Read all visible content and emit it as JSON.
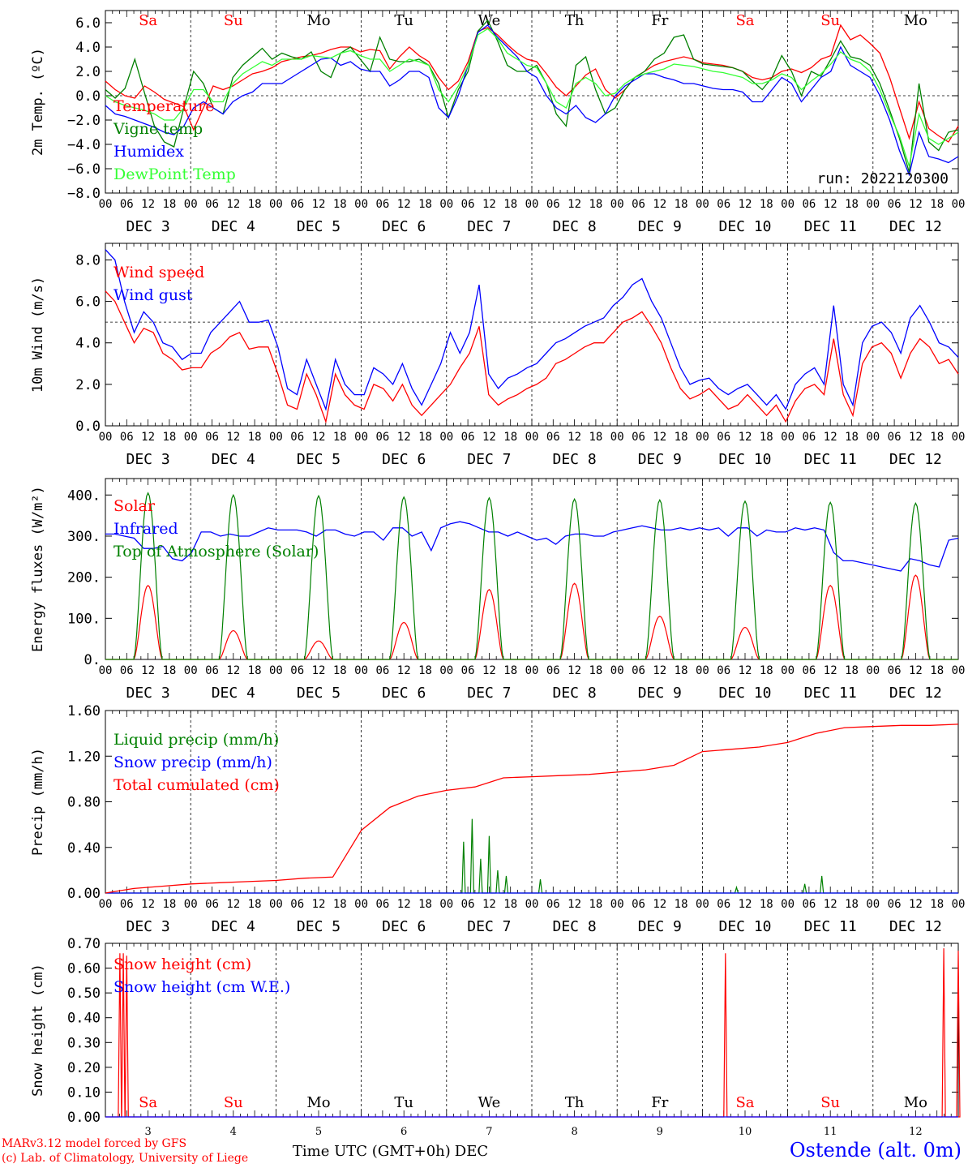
{
  "chart_data": [
    {
      "type": "line",
      "ylabel": "2m Temp. (ºC)",
      "ylim": [
        -8,
        7
      ],
      "yticks": [
        "6.0",
        "4.0",
        "2.0",
        "0.0",
        "−2.0",
        "−4.0",
        "−6.0",
        "−8.0"
      ],
      "yticks_values": [
        6,
        4,
        2,
        0,
        -2,
        -4,
        -6,
        -8
      ],
      "reference_line": 0,
      "annotation": "run: 2022120300",
      "days_weekday": [
        "Sa",
        "Su",
        "Mo",
        "Tu",
        "We",
        "Th",
        "Fr",
        "Sa",
        "Su",
        "Mo"
      ],
      "series": [
        {
          "name": "Temperature",
          "color": "#ff0000",
          "values": [
            1.2,
            0.5,
            0.0,
            -0.2,
            0.8,
            0.3,
            -0.3,
            -0.6,
            -0.9,
            -2.8,
            -1.0,
            0.8,
            0.5,
            0.8,
            1.3,
            1.8,
            2.0,
            2.3,
            2.8,
            3.0,
            3.2,
            3.3,
            3.5,
            3.8,
            4.0,
            4.0,
            3.6,
            3.8,
            3.7,
            2.2,
            3.2,
            4.0,
            3.3,
            2.8,
            1.5,
            0.5,
            1.2,
            2.8,
            5.3,
            5.6,
            5.0,
            4.2,
            3.5,
            3.0,
            2.8,
            1.8,
            0.7,
            0.0,
            0.8,
            1.7,
            2.2,
            0.5,
            -0.2,
            0.5,
            1.5,
            2.0,
            2.5,
            2.8,
            3.0,
            3.2,
            3.0,
            2.7,
            2.6,
            2.5,
            2.3,
            2.0,
            1.5,
            1.3,
            1.5,
            2.0,
            2.2,
            1.9,
            2.3,
            3.0,
            3.3,
            5.8,
            4.6,
            5.0,
            4.3,
            3.5,
            1.5,
            -1.0,
            -3.5,
            -0.5,
            -2.7,
            -3.3,
            -3.8,
            -2.5
          ]
        },
        {
          "name": "Vigne temp",
          "color": "#008000",
          "values": [
            0.5,
            -0.2,
            0.6,
            3.0,
            0.2,
            -2.5,
            -3.8,
            -4.2,
            -1.0,
            2.0,
            1.0,
            -1.0,
            -1.5,
            1.5,
            2.5,
            3.2,
            3.9,
            3.0,
            3.5,
            3.2,
            3.0,
            3.6,
            2.0,
            1.5,
            3.5,
            4.0,
            3.0,
            2.0,
            4.8,
            3.0,
            2.8,
            2.8,
            3.0,
            2.5,
            1.0,
            -1.8,
            0.5,
            2.0,
            5.3,
            6.2,
            4.5,
            2.5,
            2.0,
            2.0,
            2.5,
            1.0,
            -1.5,
            -2.5,
            2.5,
            3.2,
            0.5,
            -1.5,
            -1.0,
            0.5,
            1.5,
            2.0,
            3.0,
            3.5,
            4.8,
            5.0,
            3.0,
            2.6,
            2.5,
            2.4,
            2.3,
            2.0,
            1.2,
            0.5,
            1.5,
            3.3,
            2.0,
            0.0,
            2.0,
            1.6,
            3.0,
            4.5,
            3.2,
            3.0,
            2.5,
            1.0,
            -1.2,
            -3.5,
            -6.3,
            1.0,
            -3.8,
            -4.5,
            -3.0,
            -2.8
          ]
        },
        {
          "name": "Humidex",
          "color": "#0000ff",
          "values": [
            -0.8,
            -1.5,
            -1.7,
            -2.0,
            -2.3,
            -2.6,
            -3.0,
            -3.2,
            -2.5,
            -1.0,
            -0.5,
            -1.0,
            -1.5,
            -0.5,
            0.0,
            0.3,
            1.0,
            1.0,
            1.0,
            1.5,
            2.0,
            2.5,
            3.0,
            3.1,
            2.5,
            2.8,
            2.2,
            2.0,
            2.0,
            0.8,
            1.3,
            2.0,
            2.0,
            1.5,
            -1.0,
            -1.8,
            0.0,
            2.5,
            5.2,
            5.8,
            4.8,
            4.0,
            3.2,
            2.0,
            1.5,
            0.0,
            -1.0,
            -1.5,
            -0.8,
            -1.8,
            -2.2,
            -1.5,
            0.0,
            0.8,
            1.3,
            1.8,
            1.8,
            1.5,
            1.3,
            1.0,
            1.0,
            0.8,
            0.6,
            0.5,
            0.5,
            0.3,
            -0.5,
            -0.5,
            0.5,
            1.5,
            1.0,
            -0.5,
            0.5,
            1.5,
            2.0,
            4.0,
            2.5,
            2.0,
            1.5,
            0.0,
            -2.0,
            -4.5,
            -6.5,
            -3.0,
            -5.0,
            -5.2,
            -5.5,
            -5.0
          ]
        },
        {
          "name": "DewPoint Temp",
          "color": "#33ff33",
          "values": [
            0.0,
            -0.5,
            -0.8,
            -1.0,
            -1.2,
            -1.5,
            -2.0,
            -2.0,
            -1.0,
            0.5,
            0.5,
            -0.5,
            -0.5,
            1.0,
            1.8,
            2.3,
            2.8,
            2.5,
            3.0,
            3.0,
            3.0,
            3.3,
            3.2,
            3.1,
            3.5,
            3.7,
            3.3,
            3.0,
            3.0,
            2.0,
            2.5,
            3.0,
            2.8,
            2.5,
            0.5,
            -0.5,
            0.8,
            2.5,
            5.0,
            5.5,
            4.7,
            3.5,
            3.0,
            2.5,
            2.3,
            1.0,
            -0.5,
            -1.0,
            1.0,
            1.5,
            1.0,
            0.0,
            0.2,
            1.0,
            1.5,
            1.8,
            2.0,
            2.2,
            2.6,
            2.5,
            2.4,
            2.2,
            2.0,
            1.9,
            1.7,
            1.5,
            1.0,
            1.0,
            1.3,
            1.8,
            1.5,
            0.5,
            1.2,
            1.8,
            2.6,
            3.6,
            3.0,
            2.7,
            2.0,
            0.5,
            -1.5,
            -3.3,
            -5.8,
            -1.5,
            -3.5,
            -4.0,
            -3.5,
            -3.0
          ]
        }
      ]
    },
    {
      "type": "line",
      "ylabel": "10m Wind (m/s)",
      "ylim": [
        0,
        8.8
      ],
      "yticks": [
        "8.0",
        "6.0",
        "4.0",
        "2.0",
        "0.0"
      ],
      "yticks_values": [
        8,
        6,
        4,
        2,
        0
      ],
      "reference_line": 5,
      "series": [
        {
          "name": "Wind speed",
          "color": "#ff0000",
          "values": [
            6.5,
            6.0,
            5.0,
            4.0,
            4.7,
            4.5,
            3.5,
            3.2,
            2.7,
            2.8,
            2.8,
            3.5,
            3.8,
            4.3,
            4.5,
            3.7,
            3.8,
            3.8,
            2.5,
            1.0,
            0.8,
            2.5,
            1.5,
            0.2,
            2.5,
            1.5,
            1.0,
            0.8,
            2.0,
            1.8,
            1.2,
            2.0,
            1.0,
            0.5,
            1.0,
            1.5,
            2.0,
            2.8,
            3.5,
            4.8,
            1.5,
            1.0,
            1.3,
            1.5,
            1.8,
            2.0,
            2.3,
            3.0,
            3.2,
            3.5,
            3.8,
            4.0,
            4.0,
            4.5,
            5.0,
            5.2,
            5.5,
            4.8,
            4.0,
            2.8,
            1.8,
            1.3,
            1.5,
            1.8,
            1.3,
            0.8,
            1.0,
            1.5,
            1.0,
            0.5,
            1.0,
            0.2,
            1.2,
            1.8,
            2.0,
            1.5,
            4.2,
            1.5,
            0.5,
            3.0,
            3.8,
            4.0,
            3.5,
            2.3,
            3.5,
            4.2,
            3.8,
            3.0,
            3.2,
            2.5
          ]
        },
        {
          "name": "Wind gust",
          "color": "#0000ff",
          "values": [
            8.5,
            8.0,
            6.0,
            4.5,
            5.5,
            5.0,
            4.0,
            3.8,
            3.2,
            3.5,
            3.5,
            4.5,
            5.0,
            5.5,
            6.0,
            5.0,
            5.0,
            5.1,
            3.8,
            1.8,
            1.5,
            3.2,
            2.0,
            0.8,
            3.2,
            2.0,
            1.5,
            1.5,
            2.8,
            2.5,
            2.0,
            3.0,
            1.8,
            1.0,
            2.0,
            3.0,
            4.5,
            3.5,
            4.5,
            6.8,
            2.5,
            1.8,
            2.3,
            2.5,
            2.8,
            3.0,
            3.5,
            4.0,
            4.2,
            4.5,
            4.8,
            5.0,
            5.2,
            5.8,
            6.2,
            6.8,
            7.1,
            6.0,
            5.2,
            4.0,
            2.8,
            2.0,
            2.2,
            2.3,
            1.8,
            1.5,
            1.8,
            2.0,
            1.5,
            1.0,
            1.5,
            0.8,
            2.0,
            2.5,
            2.8,
            2.0,
            5.8,
            2.0,
            1.0,
            4.0,
            4.8,
            5.0,
            4.5,
            3.5,
            5.2,
            5.8,
            5.0,
            4.0,
            3.8,
            3.3
          ]
        }
      ]
    },
    {
      "type": "line",
      "ylabel": "Energy fluxes (W/m²)",
      "ylim": [
        0,
        440
      ],
      "yticks": [
        "400.",
        "300.",
        "200.",
        "100.",
        "0."
      ],
      "yticks_values": [
        400,
        300,
        200,
        100,
        0
      ],
      "series": [
        {
          "name": "Solar",
          "color": "#ff0000",
          "day_peaks": [
            180,
            70,
            45,
            90,
            170,
            185,
            105,
            78,
            180,
            205
          ]
        },
        {
          "name": "Infrared",
          "color": "#0000ff",
          "values": [
            305,
            305,
            300,
            295,
            270,
            270,
            275,
            245,
            240,
            260,
            310,
            310,
            300,
            305,
            300,
            300,
            310,
            320,
            315,
            315,
            315,
            310,
            300,
            315,
            315,
            305,
            300,
            310,
            310,
            290,
            320,
            320,
            300,
            310,
            265,
            320,
            330,
            335,
            330,
            320,
            310,
            310,
            300,
            310,
            300,
            290,
            295,
            280,
            300,
            305,
            305,
            300,
            300,
            310,
            315,
            320,
            325,
            320,
            315,
            315,
            320,
            315,
            320,
            315,
            320,
            300,
            320,
            320,
            300,
            315,
            310,
            310,
            320,
            315,
            320,
            315,
            260,
            240,
            240,
            235,
            230,
            225,
            220,
            215,
            245,
            240,
            230,
            225,
            290,
            295
          ]
        },
        {
          "name": "Top of Atmosphere (Solar)",
          "color": "#008000",
          "day_peaks": [
            405,
            400,
            398,
            395,
            393,
            390,
            388,
            385,
            382,
            380
          ]
        }
      ]
    },
    {
      "type": "line",
      "ylabel": "Precip (mm/h)",
      "ylim": [
        0,
        1.6
      ],
      "yticks": [
        "1.60",
        "1.20",
        "0.80",
        "0.40",
        "0.00"
      ],
      "yticks_values": [
        1.6,
        1.2,
        0.8,
        0.4,
        0
      ],
      "series": [
        {
          "name": "Liquid precip (mm/h)",
          "color": "#008000",
          "spikes": [
            [
              4.2,
              0.45
            ],
            [
              4.3,
              0.65
            ],
            [
              4.4,
              0.3
            ],
            [
              4.5,
              0.5
            ],
            [
              4.6,
              0.2
            ],
            [
              4.7,
              0.15
            ],
            [
              5.1,
              0.12
            ],
            [
              7.4,
              0.05
            ],
            [
              8.2,
              0.08
            ],
            [
              8.4,
              0.15
            ]
          ]
        },
        {
          "name": "Snow precip (mm/h)",
          "color": "#0000ff",
          "values": [
            0,
            0,
            0,
            0,
            0,
            0,
            0,
            0,
            0,
            0,
            0
          ]
        },
        {
          "name": "Total cumulated (cm)",
          "color": "#ff0000",
          "values": [
            0.0,
            0.04,
            0.06,
            0.08,
            0.09,
            0.1,
            0.11,
            0.13,
            0.14,
            0.55,
            0.75,
            0.85,
            0.9,
            0.93,
            1.01,
            1.02,
            1.03,
            1.04,
            1.06,
            1.08,
            1.12,
            1.24,
            1.26,
            1.28,
            1.32,
            1.4,
            1.45,
            1.46,
            1.47,
            1.47,
            1.48
          ]
        }
      ]
    },
    {
      "type": "line",
      "ylabel": "Snow height (cm)",
      "ylim": [
        0,
        0.7
      ],
      "yticks": [
        "0.70",
        "0.60",
        "0.50",
        "0.40",
        "0.30",
        "0.20",
        "0.10",
        "0.00"
      ],
      "yticks_values": [
        0.7,
        0.6,
        0.5,
        0.4,
        0.3,
        0.2,
        0.1,
        0
      ],
      "series": [
        {
          "name": "Snow height (cm)",
          "color": "#ff0000",
          "spikes": [
            [
              0.17,
              0.66
            ],
            [
              0.21,
              0.66
            ],
            [
              0.25,
              0.65
            ],
            [
              7.27,
              0.66
            ],
            [
              9.83,
              0.68
            ],
            [
              10.0,
              0.67
            ]
          ]
        },
        {
          "name": "Snow height (cm W.E.)",
          "color": "#0000ff",
          "values": [
            0,
            0,
            0
          ]
        }
      ]
    }
  ],
  "x_axis": {
    "hour_ticks": [
      "00",
      "06",
      "12",
      "18"
    ],
    "day_labels": [
      "DEC  3",
      "DEC  4",
      "DEC  5",
      "DEC  6",
      "DEC  7",
      "DEC  8",
      "DEC  9",
      "DEC 10",
      "DEC 11",
      "DEC 12"
    ],
    "bottom_day_numbers": [
      "3",
      "4",
      "5",
      "6",
      "7",
      "8",
      "9",
      "10",
      "11",
      "12"
    ],
    "xlabel": "Time UTC (GMT+0h)",
    "xlabel_suffix": "DEC",
    "last_tick": "00"
  },
  "weekday_colors": {
    "weekend": "#ff0000",
    "weekday": "#000000"
  },
  "footer": {
    "credit1": "MARv3.12 model forced by GFS",
    "credit2": "(c) Lab. of Climatology, University of Liege",
    "station": "Ostende (alt. 0m)",
    "station_color": "#0000ff",
    "credit_color": "#ff0000"
  }
}
